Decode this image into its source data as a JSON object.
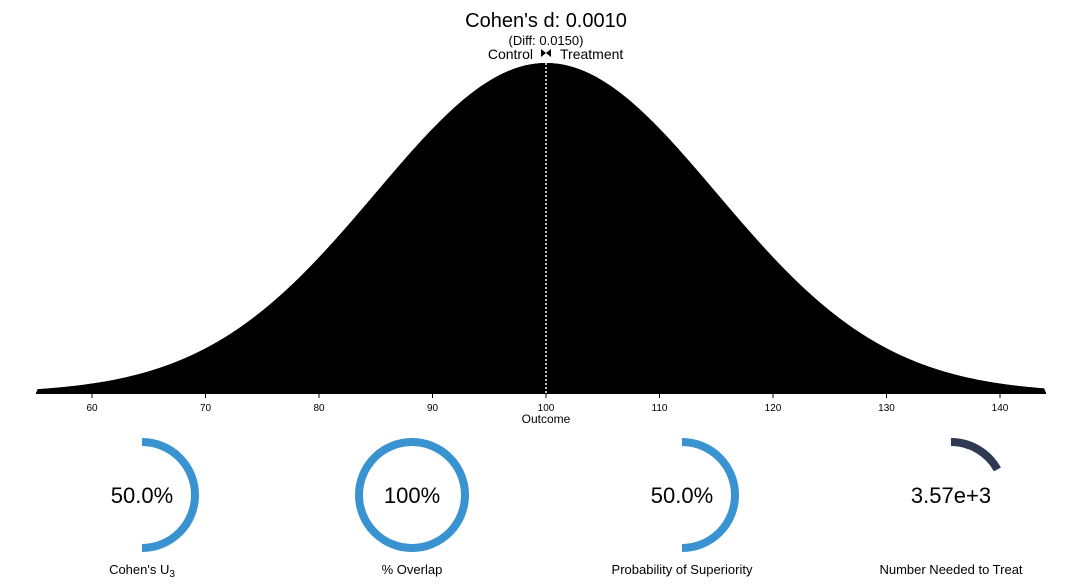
{
  "chart_data": {
    "type": "area",
    "title": "Cohen's d: 0.0010",
    "subtitle": "(Diff: 0.0150)",
    "control_label": "Control",
    "treatment_label": "Treatment",
    "xlabel": "Outcome",
    "xlim": [
      55,
      145
    ],
    "x_ticks": [
      60,
      70,
      80,
      90,
      100,
      110,
      120,
      130,
      140
    ],
    "series": [
      {
        "name": "Control",
        "mean": 100,
        "sd": 15,
        "color": "#000000"
      },
      {
        "name": "Treatment",
        "mean": 100.015,
        "sd": 15,
        "color": "#000000"
      }
    ],
    "grid": false
  },
  "metrics": [
    {
      "id": "u3",
      "value_text": "50.0%",
      "label": "Cohen's U",
      "label_sub": "3",
      "fraction": 0.5,
      "color": "#3a93d1",
      "arc": "right-half"
    },
    {
      "id": "overlap",
      "value_text": "100%",
      "label": "% Overlap",
      "label_sub": "",
      "fraction": 1.0,
      "color": "#3a93d1",
      "arc": "full"
    },
    {
      "id": "superiority",
      "value_text": "50.0%",
      "label": "Probability of Superiority",
      "label_sub": "",
      "fraction": 0.5,
      "color": "#3a93d1",
      "arc": "right-half"
    },
    {
      "id": "nnt",
      "value_text": "3.57e+3",
      "label": "Number Needed to Treat",
      "label_sub": "",
      "fraction": 0.17,
      "color": "#2f3a52",
      "arc": "top-right"
    }
  ]
}
